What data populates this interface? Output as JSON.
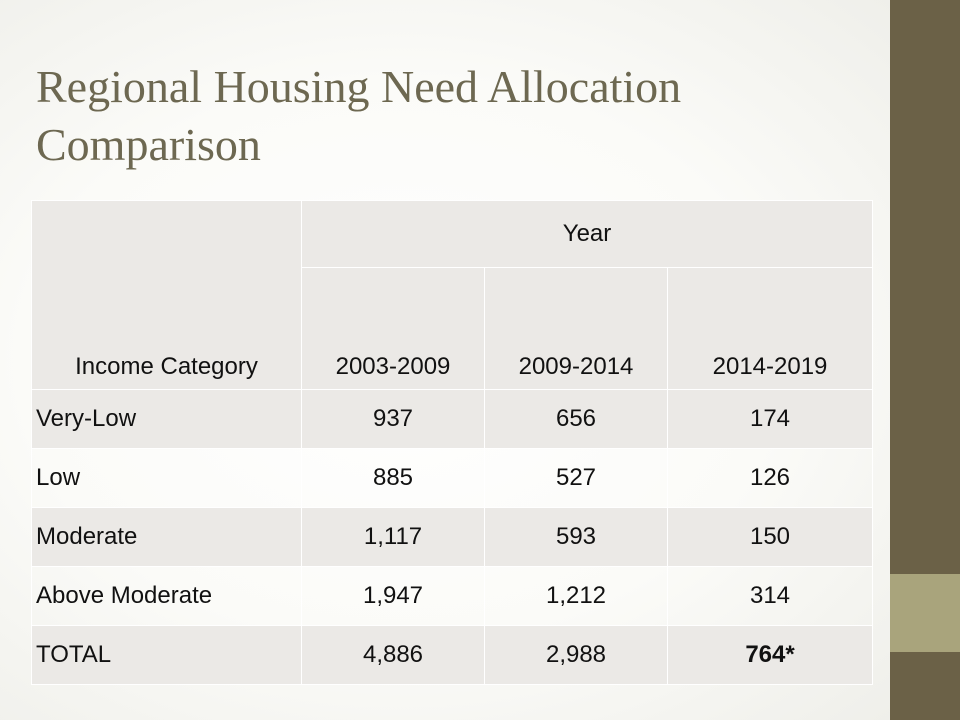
{
  "slide": {
    "title": "Regional Housing Need Allocation Comparison"
  },
  "table": {
    "row_header": "Income Category",
    "group_header": "Year",
    "columns": [
      "2003-2009",
      "2009-2014",
      "2014-2019"
    ],
    "rows": [
      {
        "category": "Very-Low",
        "values": [
          "937",
          "656",
          "174"
        ]
      },
      {
        "category": "Low",
        "values": [
          "885",
          "527",
          "126"
        ]
      },
      {
        "category": "Moderate",
        "values": [
          "1,117",
          "593",
          "150"
        ]
      },
      {
        "category": "Above Moderate",
        "values": [
          "1,947",
          "1,212",
          "314"
        ]
      },
      {
        "category": "TOTAL",
        "values": [
          "4,886",
          "2,988",
          "764*"
        ]
      }
    ]
  },
  "colors": {
    "title": "#6d6851",
    "sidebar": "#6b6147",
    "sidebar_accent": "#a9a47c",
    "cell_shade": "#ebe9e6"
  }
}
